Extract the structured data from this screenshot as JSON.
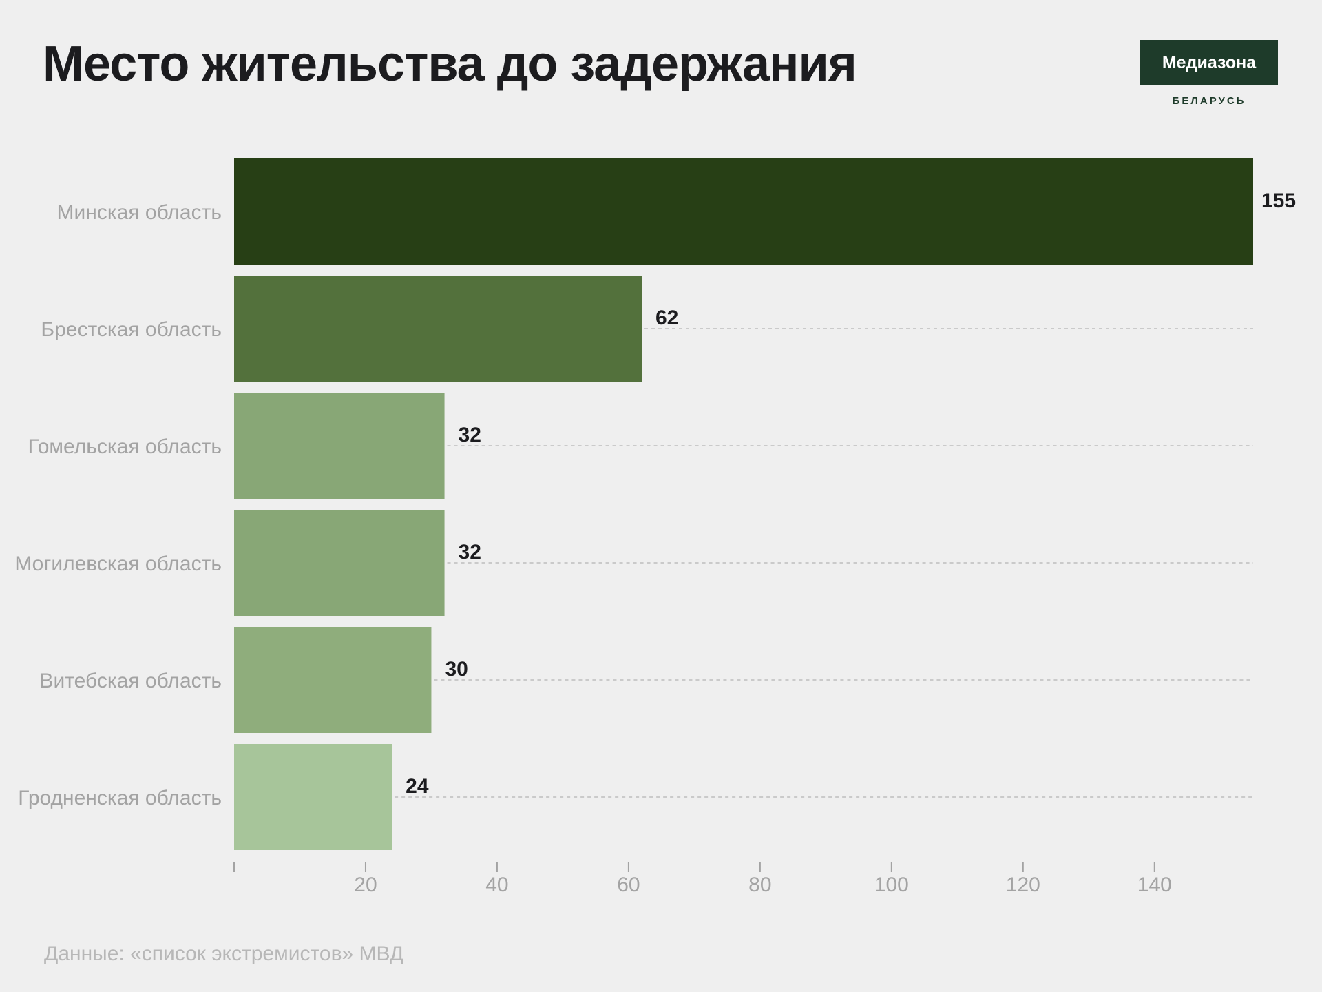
{
  "header": {
    "title": "Место жительства до задержания"
  },
  "logo": {
    "name": "Медиазона",
    "subtitle": "БЕЛАРУСЬ"
  },
  "footer": {
    "source": "Данные: «список экстремистов» МВД"
  },
  "chart_data": {
    "type": "bar",
    "orientation": "horizontal",
    "title": "Место жительства до задержания",
    "categories": [
      "Минская область",
      "Брестская область",
      "Гомельская область",
      "Могилевская область",
      "Витебская область",
      "Гродненская область"
    ],
    "values": [
      155,
      62,
      32,
      32,
      30,
      24
    ],
    "colors": [
      "#273f15",
      "#53713c",
      "#88a776",
      "#88a776",
      "#8fad7c",
      "#a7c59a"
    ],
    "xlim": [
      0,
      155
    ],
    "xticks": [
      20,
      40,
      60,
      80,
      100,
      120,
      140
    ],
    "xlabel": "",
    "ylabel": "",
    "grid": "dashed horizontal lines at bar centers"
  }
}
